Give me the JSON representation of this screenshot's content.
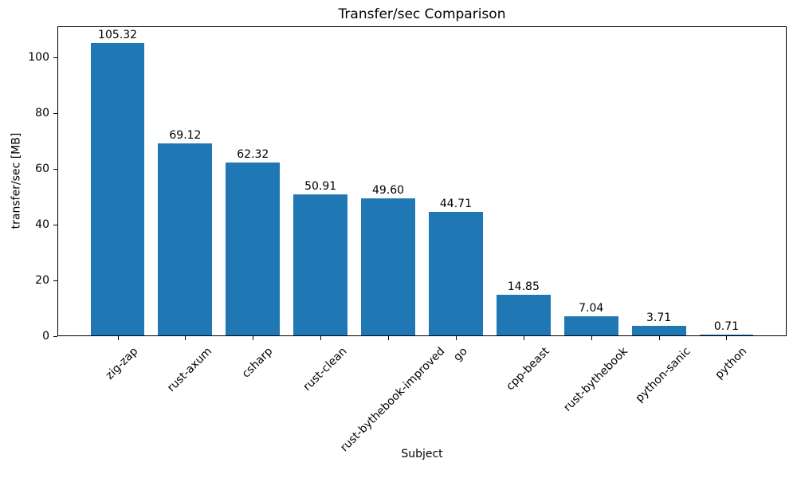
{
  "chart_data": {
    "type": "bar",
    "title": "Transfer/sec Comparison",
    "xlabel": "Subject",
    "ylabel": "transfer/sec [MB]",
    "categories": [
      "zig-zap",
      "rust-axum",
      "csharp",
      "rust-clean",
      "rust-bythebook-improved",
      "go",
      "cpp-beast",
      "rust-bythebook",
      "python-sanic",
      "python"
    ],
    "values": [
      105.32,
      69.12,
      62.32,
      50.91,
      49.6,
      44.71,
      14.85,
      7.04,
      3.71,
      0.71
    ],
    "value_labels": [
      "105.32",
      "69.12",
      "62.32",
      "50.91",
      "49.60",
      "44.71",
      "14.85",
      "7.04",
      "3.71",
      "0.71"
    ],
    "yticks": [
      0,
      20,
      40,
      60,
      80,
      100
    ],
    "ylim": [
      0,
      111.3
    ],
    "bar_width_fraction": 0.8,
    "xtick_rotation_deg": 45,
    "grid": false,
    "bar_color": "#1f77b4",
    "axis_color": "#000000",
    "background_color": "#ffffff"
  }
}
